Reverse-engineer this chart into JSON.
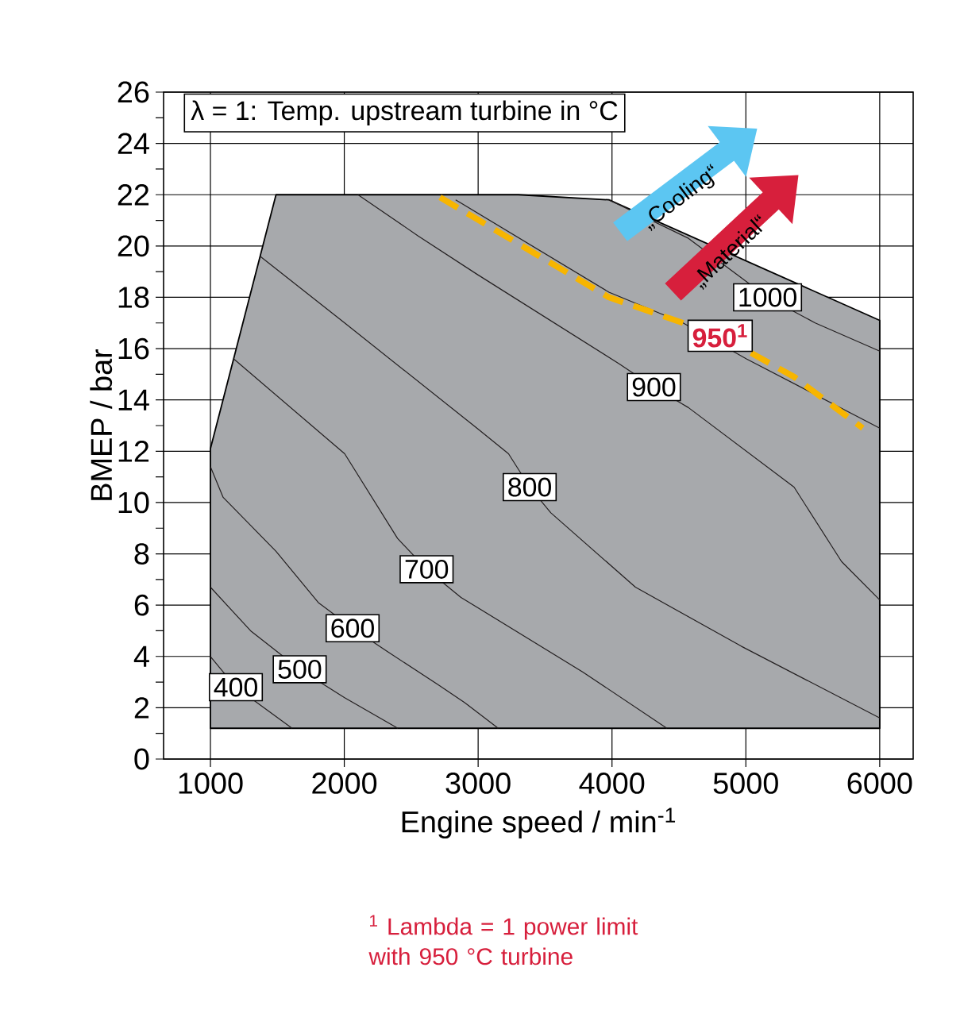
{
  "chart_data": {
    "type": "line",
    "title": "λ = 1: Temp. upstream turbine in °C",
    "xlabel": "Engine speed / min$^{-1}$",
    "ylabel": "BMEP / bar",
    "xlim": [
      650,
      6250
    ],
    "ylim": [
      0,
      26
    ],
    "xticks": [
      1000,
      2000,
      3000,
      4000,
      5000,
      6000
    ],
    "yticks": [
      0,
      {
        "value": 1,
        "label": null
      },
      2,
      {
        "value": 3,
        "label": null
      },
      4,
      {
        "value": 5,
        "label": null
      },
      6,
      {
        "value": 7,
        "label": null
      },
      8,
      {
        "value": 9,
        "label": null
      },
      10,
      {
        "value": 11,
        "label": null
      },
      12,
      {
        "value": 13,
        "label": null
      },
      14,
      {
        "value": 15,
        "label": null
      },
      16,
      {
        "value": 17,
        "label": null
      },
      18,
      {
        "value": 19,
        "label": null
      },
      20,
      {
        "value": 21,
        "label": null
      },
      22,
      {
        "value": 23,
        "label": null
      },
      24,
      {
        "value": 25,
        "label": null
      },
      26
    ],
    "grid": true,
    "series": [
      {
        "type": "area",
        "color": "#a7a9ac",
        "x": [
          1000,
          1490,
          3300,
          3977,
          6000,
          6000,
          1000
        ],
        "values": [
          12.1,
          22.0,
          22.0,
          21.8,
          17.1,
          1.2,
          1.2
        ]
      },
      {
        "name": "400",
        "color": "#231f20",
        "x": [
          1000,
          1190,
          1610
        ],
        "values": [
          4.0,
          2.8,
          1.2
        ]
      },
      {
        "name": "500",
        "color": "#231f20",
        "x": [
          1000,
          1300,
          1667,
          2000,
          2400
        ],
        "values": [
          6.7,
          5.0,
          3.5,
          2.4,
          1.2
        ]
      },
      {
        "name": "600",
        "color": "#231f20",
        "x": [
          1000,
          1095,
          1490,
          1806,
          2062,
          2319,
          2700,
          2900,
          3150
        ],
        "values": [
          11.4,
          10.2,
          8.1,
          6.1,
          5.1,
          4.2,
          2.9,
          2.2,
          1.2
        ]
      },
      {
        "name": "700",
        "color": "#231f20",
        "x": [
          1174,
          2003,
          2398,
          2615,
          2872,
          3780,
          4410
        ],
        "values": [
          15.6,
          11.9,
          8.6,
          7.4,
          6.3,
          3.4,
          1.2
        ]
      },
      {
        "name": "800",
        "color": "#231f20",
        "x": [
          1371,
          2003,
          2991,
          3227,
          3385,
          3543,
          4175,
          4965,
          6000
        ],
        "values": [
          19.6,
          17.0,
          12.9,
          11.9,
          10.6,
          9.6,
          6.7,
          4.4,
          1.6
        ]
      },
      {
        "name": "900",
        "color": "#231f20",
        "x": [
          2102,
          2550,
          2991,
          4056,
          4313,
          4571,
          5360,
          5715,
          6000
        ],
        "values": [
          22.0,
          20.4,
          18.9,
          15.4,
          14.5,
          13.7,
          10.6,
          7.7,
          6.2
        ]
      },
      {
        "color": "#231f20",
        "x": [
          2832,
          3977,
          4531,
          5004,
          6000
        ],
        "values": [
          21.8,
          18.2,
          17.0,
          15.6,
          12.9
        ]
      },
      {
        "name": "1000",
        "color": "#231f20",
        "x": [
          3977,
          4571,
          5162,
          5518,
          6000
        ],
        "values": [
          21.8,
          20.3,
          18.0,
          17.0,
          15.9
        ]
      },
      {
        "name": "950$^{1}$",
        "color": "#f7b500",
        "line_style": "dashed",
        "x": [
          2715,
          3977,
          4808,
          5360,
          5873
        ],
        "values": [
          21.9,
          18.0,
          16.5,
          14.9,
          12.9
        ]
      }
    ],
    "annotations": [
      "„Cooling“",
      "„Material“",
      "$^{1}$ Lambda = 1 power limit with 950 °C turbine"
    ]
  }
}
